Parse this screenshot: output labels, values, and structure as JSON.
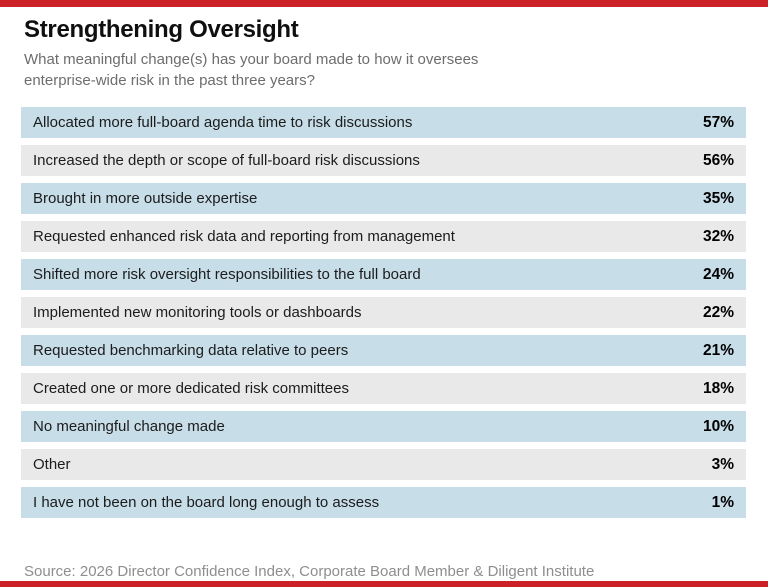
{
  "header": {
    "title": "Strengthening Oversight",
    "subtitle": "What meaningful change(s) has your board made to how it oversees enterprise-wide risk in the past three years?"
  },
  "chart_data": {
    "type": "table",
    "title": "Strengthening Oversight",
    "subtitle": "What meaningful change(s) has your board made to how it oversees enterprise-wide risk in the past three years?",
    "unit": "%",
    "categories": [
      "Allocated more full-board agenda time to risk discussions",
      "Increased the depth or scope of full-board risk discussions",
      "Brought in more outside expertise",
      "Requested enhanced risk data and reporting from management",
      "Shifted more risk oversight responsibilities to the full board",
      "Implemented new monitoring tools or dashboards",
      "Requested benchmarking data relative to peers",
      "Created one or more dedicated risk committees",
      "No meaningful change made",
      "Other",
      "I have not been on the board long enough to assess"
    ],
    "values": [
      57,
      56,
      35,
      32,
      24,
      22,
      21,
      18,
      10,
      3,
      1
    ],
    "value_labels": [
      "57%",
      "56%",
      "35%",
      "32%",
      "24%",
      "22%",
      "21%",
      "18%",
      "10%",
      "3%",
      "1%"
    ],
    "legend": null,
    "grid": false,
    "row_style": "alternating blue/gray stripes, value right-aligned"
  },
  "footer": {
    "source": "Source: 2026 Director Confidence Index, Corporate Board Member & Diligent Institute"
  },
  "colors": {
    "accent_red": "#cb2127",
    "row_blue": "#c7dde8",
    "row_gray": "#e9e9e9",
    "title_text": "#0f0f0f",
    "subtitle_text": "#6d6d6d",
    "row_text": "#1c1c1c",
    "source_text": "#8e8e8e"
  }
}
